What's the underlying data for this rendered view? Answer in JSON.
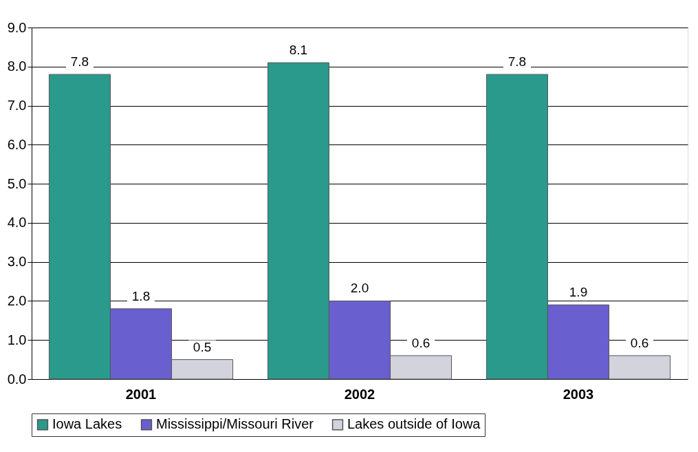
{
  "chart_data": {
    "type": "bar",
    "categories": [
      "2001",
      "2002",
      "2003"
    ],
    "series": [
      {
        "name": "Iowa Lakes",
        "color": "#2a9a8c",
        "values": [
          7.8,
          8.1,
          7.8
        ],
        "value_labels": [
          "7.8",
          "8.1",
          "7.8"
        ]
      },
      {
        "name": "Mississippi/Missouri River",
        "color": "#6a5fcf",
        "values": [
          1.8,
          2.0,
          1.9
        ],
        "value_labels": [
          "1.8",
          "2.0",
          "1.9"
        ]
      },
      {
        "name": "Lakes outside of Iowa",
        "color": "#d3d3de",
        "values": [
          0.5,
          0.6,
          0.6
        ],
        "value_labels": [
          "0.5",
          "0.6",
          "0.6"
        ]
      }
    ],
    "ylim": [
      0,
      9
    ],
    "yticks": [
      {
        "value": 0,
        "label": "0.0"
      },
      {
        "value": 1,
        "label": "1.0"
      },
      {
        "value": 2,
        "label": "2.0"
      },
      {
        "value": 3,
        "label": "3.0"
      },
      {
        "value": 4,
        "label": "4.0"
      },
      {
        "value": 5,
        "label": "5.0"
      },
      {
        "value": 6,
        "label": "6.0"
      },
      {
        "value": 7,
        "label": "7.0"
      },
      {
        "value": 8,
        "label": "8.0"
      },
      {
        "value": 9,
        "label": "9.0"
      }
    ],
    "grid": "y",
    "legend": "bottom"
  }
}
